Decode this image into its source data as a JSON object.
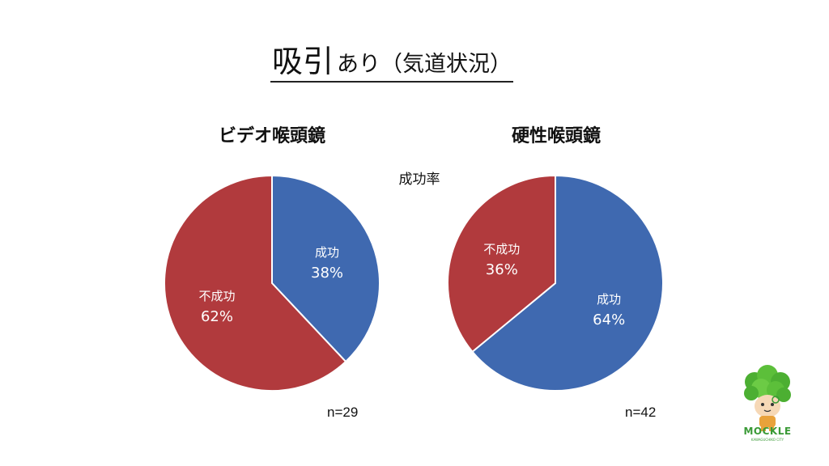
{
  "slide": {
    "title_main": "吸引",
    "title_sub": "あり（気道状況）",
    "center_label": "成功率"
  },
  "logo": {
    "text": "MOCKLE",
    "sub": "KAWAGUCHIKO CITY",
    "icon": "broccoli-mascot-icon"
  },
  "colors": {
    "success": "#3f69b0",
    "failure": "#b13a3d",
    "slice_text": "#ffffff"
  },
  "chart_data": [
    {
      "type": "pie",
      "title": "ビデオ喉頭鏡",
      "n_label": "n=29",
      "slices": [
        {
          "label": "成功",
          "value": 38,
          "pct_label": "38%",
          "color": "#3f69b0"
        },
        {
          "label": "不成功",
          "value": 62,
          "pct_label": "62%",
          "color": "#b13a3d"
        }
      ]
    },
    {
      "type": "pie",
      "title": "硬性喉頭鏡",
      "n_label": "n=42",
      "slices": [
        {
          "label": "成功",
          "value": 64,
          "pct_label": "64%",
          "color": "#3f69b0"
        },
        {
          "label": "不成功",
          "value": 36,
          "pct_label": "36%",
          "color": "#b13a3d"
        }
      ]
    }
  ]
}
